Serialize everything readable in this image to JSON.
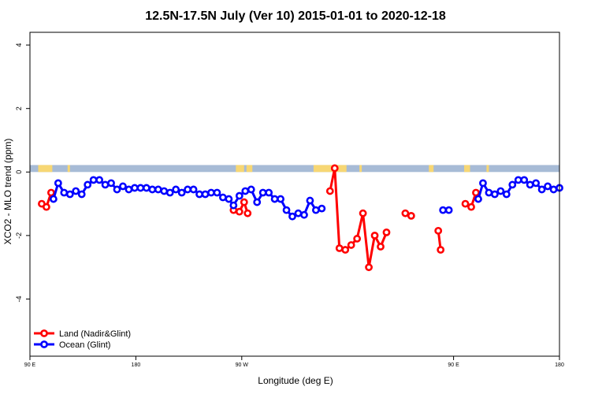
{
  "chart_data": {
    "type": "line",
    "title": "12.5N-17.5N July (Ver 10)   2015-01-01 to 2020-12-18",
    "xlabel": "Longitude (deg E)",
    "ylabel": "XCO2 - MLO trend (ppm)",
    "x_axis": {
      "ticks": [
        {
          "value": 90,
          "label": "90 E"
        },
        {
          "value": 180,
          "label": "180"
        },
        {
          "value": 270,
          "label": "90 W"
        },
        {
          "value": 450,
          "label": "90 E"
        },
        {
          "value": 540,
          "label": "180"
        }
      ],
      "xlim": [
        90,
        540
      ]
    },
    "y_axis": {
      "ticks": [
        {
          "value": 4,
          "label": "4"
        },
        {
          "value": 2,
          "label": "2"
        },
        {
          "value": 0,
          "label": "0"
        },
        {
          "value": -2,
          "label": "-2"
        },
        {
          "value": -4,
          "label": "-4"
        }
      ],
      "ylim": [
        -5.8,
        4.4
      ]
    },
    "grid": false,
    "legend_position": "bottom-left",
    "surface_band": {
      "y_range": [
        0,
        0.22
      ],
      "ocean_color": "#a7bbd6",
      "land_color": "#f7d774",
      "land_segments": [
        [
          97,
          109
        ],
        [
          122,
          124
        ],
        [
          265,
          272
        ],
        [
          274,
          279
        ],
        [
          331,
          359
        ],
        [
          370,
          372
        ],
        [
          429,
          433
        ],
        [
          459,
          464
        ],
        [
          478,
          480
        ]
      ]
    },
    "series": [
      {
        "name": "Land (Nadir&Glint)",
        "color": "#ff0000",
        "points": [
          [
            100,
            -1.0
          ],
          [
            104,
            -1.1
          ],
          [
            108,
            -0.65
          ],
          null,
          [
            263,
            -1.2
          ],
          [
            268,
            -1.25
          ],
          [
            272,
            -0.95
          ],
          [
            275,
            -1.3
          ],
          null,
          [
            345,
            -0.6
          ],
          [
            349,
            0.12
          ],
          [
            353,
            -2.4
          ],
          [
            358,
            -2.45
          ],
          [
            363,
            -2.3
          ],
          [
            368,
            -2.1
          ],
          [
            373,
            -1.3
          ],
          [
            378,
            -3.0
          ],
          [
            383,
            -2.0
          ],
          [
            388,
            -2.35
          ],
          [
            393,
            -1.9
          ],
          null,
          [
            409,
            -1.3
          ],
          [
            414,
            -1.38
          ],
          null,
          [
            437,
            -1.85
          ],
          [
            439,
            -2.45
          ],
          null,
          [
            460,
            -1.0
          ],
          [
            465,
            -1.1
          ],
          [
            469,
            -0.65
          ]
        ]
      },
      {
        "name": "Ocean (Glint)",
        "color": "#0000ff",
        "points": [
          [
            110,
            -0.85
          ],
          [
            114,
            -0.35
          ],
          [
            119,
            -0.65
          ],
          [
            124,
            -0.7
          ],
          [
            129,
            -0.6
          ],
          [
            134,
            -0.7
          ],
          [
            139,
            -0.4
          ],
          [
            144,
            -0.25
          ],
          [
            149,
            -0.25
          ],
          [
            154,
            -0.4
          ],
          [
            159,
            -0.35
          ],
          [
            164,
            -0.55
          ],
          [
            169,
            -0.45
          ],
          [
            174,
            -0.55
          ],
          [
            179,
            -0.5
          ],
          [
            184,
            -0.5
          ],
          [
            189,
            -0.5
          ],
          [
            194,
            -0.55
          ],
          [
            199,
            -0.55
          ],
          [
            204,
            -0.6
          ],
          [
            209,
            -0.65
          ],
          [
            214,
            -0.55
          ],
          [
            219,
            -0.65
          ],
          [
            224,
            -0.55
          ],
          [
            229,
            -0.55
          ],
          [
            234,
            -0.7
          ],
          [
            239,
            -0.7
          ],
          [
            244,
            -0.65
          ],
          [
            249,
            -0.65
          ],
          [
            254,
            -0.8
          ],
          [
            259,
            -0.85
          ],
          [
            263,
            -1.05
          ],
          [
            268,
            -0.75
          ],
          [
            273,
            -0.6
          ],
          [
            278,
            -0.55
          ],
          [
            283,
            -0.95
          ],
          [
            288,
            -0.65
          ],
          [
            293,
            -0.65
          ],
          [
            298,
            -0.85
          ],
          [
            303,
            -0.85
          ],
          [
            308,
            -1.2
          ],
          [
            313,
            -1.4
          ],
          [
            318,
            -1.3
          ],
          [
            323,
            -1.35
          ],
          [
            328,
            -0.9
          ],
          [
            333,
            -1.2
          ],
          [
            338,
            -1.15
          ],
          null,
          [
            441,
            -1.2
          ],
          [
            446,
            -1.2
          ],
          null,
          [
            471,
            -0.85
          ],
          [
            475,
            -0.35
          ],
          [
            480,
            -0.65
          ],
          [
            485,
            -0.7
          ],
          [
            490,
            -0.6
          ],
          [
            495,
            -0.7
          ],
          [
            500,
            -0.4
          ],
          [
            505,
            -0.25
          ],
          [
            510,
            -0.25
          ],
          [
            515,
            -0.4
          ],
          [
            520,
            -0.35
          ],
          [
            525,
            -0.55
          ],
          [
            530,
            -0.45
          ],
          [
            535,
            -0.55
          ],
          [
            540,
            -0.5
          ]
        ]
      }
    ]
  }
}
